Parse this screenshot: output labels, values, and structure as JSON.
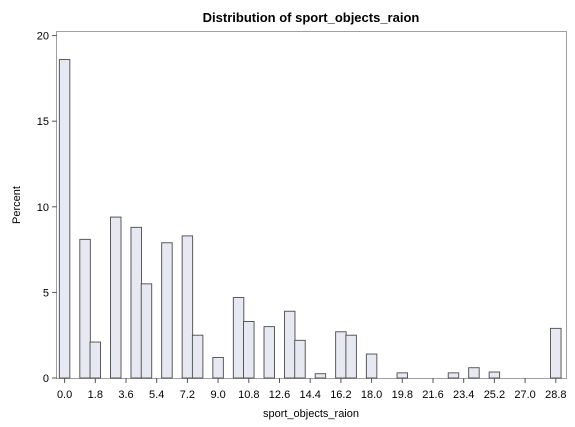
{
  "chart_data": {
    "type": "bar",
    "title": "Distribution of sport_objects_raion",
    "xlabel": "sport_objects_raion",
    "ylabel": "Percent",
    "ylim": [
      0,
      20
    ],
    "yticks": [
      "0",
      "5",
      "10",
      "15",
      "20"
    ],
    "xticks": [
      "0.0",
      "1.8",
      "3.6",
      "5.4",
      "7.2",
      "9.0",
      "10.8",
      "12.6",
      "14.4",
      "16.2",
      "18.0",
      "19.8",
      "21.6",
      "23.4",
      "25.2",
      "27.0",
      "28.8"
    ],
    "x": [
      0,
      1.2,
      1.8,
      3.0,
      4.2,
      4.8,
      6.0,
      7.2,
      7.8,
      9.0,
      10.2,
      10.8,
      12.0,
      13.2,
      13.8,
      15.0,
      16.2,
      16.8,
      18.0,
      19.8,
      22.8,
      24.0,
      25.2,
      28.8
    ],
    "values": [
      18.6,
      8.1,
      2.1,
      9.4,
      8.8,
      5.5,
      7.9,
      8.3,
      2.5,
      1.2,
      4.7,
      3.3,
      3.0,
      3.9,
      2.2,
      0.25,
      2.7,
      2.5,
      1.4,
      0.3,
      0.3,
      0.6,
      0.35,
      2.9
    ],
    "bar_color": "#e6e9f2",
    "bar_edge": "#4a4a4a",
    "grid": false,
    "legend": "none"
  }
}
